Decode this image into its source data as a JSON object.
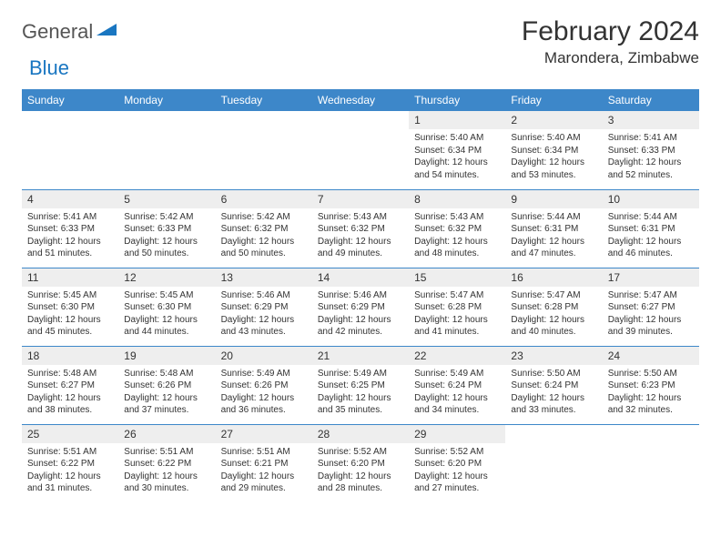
{
  "logo": {
    "text1": "General",
    "text2": "Blue",
    "shape_color": "#1976c1"
  },
  "title": {
    "month": "February 2024",
    "location": "Marondera, Zimbabwe"
  },
  "colors": {
    "header_bg": "#3d87c9",
    "header_fg": "#ffffff",
    "daynum_bg": "#eeeeee",
    "rule": "#3d87c9",
    "text": "#333333"
  },
  "weekdays": [
    "Sunday",
    "Monday",
    "Tuesday",
    "Wednesday",
    "Thursday",
    "Friday",
    "Saturday"
  ],
  "weeks": [
    [
      null,
      null,
      null,
      null,
      {
        "n": "1",
        "sunrise": "5:40 AM",
        "sunset": "6:34 PM",
        "daylight": "12 hours and 54 minutes."
      },
      {
        "n": "2",
        "sunrise": "5:40 AM",
        "sunset": "6:34 PM",
        "daylight": "12 hours and 53 minutes."
      },
      {
        "n": "3",
        "sunrise": "5:41 AM",
        "sunset": "6:33 PM",
        "daylight": "12 hours and 52 minutes."
      }
    ],
    [
      {
        "n": "4",
        "sunrise": "5:41 AM",
        "sunset": "6:33 PM",
        "daylight": "12 hours and 51 minutes."
      },
      {
        "n": "5",
        "sunrise": "5:42 AM",
        "sunset": "6:33 PM",
        "daylight": "12 hours and 50 minutes."
      },
      {
        "n": "6",
        "sunrise": "5:42 AM",
        "sunset": "6:32 PM",
        "daylight": "12 hours and 50 minutes."
      },
      {
        "n": "7",
        "sunrise": "5:43 AM",
        "sunset": "6:32 PM",
        "daylight": "12 hours and 49 minutes."
      },
      {
        "n": "8",
        "sunrise": "5:43 AM",
        "sunset": "6:32 PM",
        "daylight": "12 hours and 48 minutes."
      },
      {
        "n": "9",
        "sunrise": "5:44 AM",
        "sunset": "6:31 PM",
        "daylight": "12 hours and 47 minutes."
      },
      {
        "n": "10",
        "sunrise": "5:44 AM",
        "sunset": "6:31 PM",
        "daylight": "12 hours and 46 minutes."
      }
    ],
    [
      {
        "n": "11",
        "sunrise": "5:45 AM",
        "sunset": "6:30 PM",
        "daylight": "12 hours and 45 minutes."
      },
      {
        "n": "12",
        "sunrise": "5:45 AM",
        "sunset": "6:30 PM",
        "daylight": "12 hours and 44 minutes."
      },
      {
        "n": "13",
        "sunrise": "5:46 AM",
        "sunset": "6:29 PM",
        "daylight": "12 hours and 43 minutes."
      },
      {
        "n": "14",
        "sunrise": "5:46 AM",
        "sunset": "6:29 PM",
        "daylight": "12 hours and 42 minutes."
      },
      {
        "n": "15",
        "sunrise": "5:47 AM",
        "sunset": "6:28 PM",
        "daylight": "12 hours and 41 minutes."
      },
      {
        "n": "16",
        "sunrise": "5:47 AM",
        "sunset": "6:28 PM",
        "daylight": "12 hours and 40 minutes."
      },
      {
        "n": "17",
        "sunrise": "5:47 AM",
        "sunset": "6:27 PM",
        "daylight": "12 hours and 39 minutes."
      }
    ],
    [
      {
        "n": "18",
        "sunrise": "5:48 AM",
        "sunset": "6:27 PM",
        "daylight": "12 hours and 38 minutes."
      },
      {
        "n": "19",
        "sunrise": "5:48 AM",
        "sunset": "6:26 PM",
        "daylight": "12 hours and 37 minutes."
      },
      {
        "n": "20",
        "sunrise": "5:49 AM",
        "sunset": "6:26 PM",
        "daylight": "12 hours and 36 minutes."
      },
      {
        "n": "21",
        "sunrise": "5:49 AM",
        "sunset": "6:25 PM",
        "daylight": "12 hours and 35 minutes."
      },
      {
        "n": "22",
        "sunrise": "5:49 AM",
        "sunset": "6:24 PM",
        "daylight": "12 hours and 34 minutes."
      },
      {
        "n": "23",
        "sunrise": "5:50 AM",
        "sunset": "6:24 PM",
        "daylight": "12 hours and 33 minutes."
      },
      {
        "n": "24",
        "sunrise": "5:50 AM",
        "sunset": "6:23 PM",
        "daylight": "12 hours and 32 minutes."
      }
    ],
    [
      {
        "n": "25",
        "sunrise": "5:51 AM",
        "sunset": "6:22 PM",
        "daylight": "12 hours and 31 minutes."
      },
      {
        "n": "26",
        "sunrise": "5:51 AM",
        "sunset": "6:22 PM",
        "daylight": "12 hours and 30 minutes."
      },
      {
        "n": "27",
        "sunrise": "5:51 AM",
        "sunset": "6:21 PM",
        "daylight": "12 hours and 29 minutes."
      },
      {
        "n": "28",
        "sunrise": "5:52 AM",
        "sunset": "6:20 PM",
        "daylight": "12 hours and 28 minutes."
      },
      {
        "n": "29",
        "sunrise": "5:52 AM",
        "sunset": "6:20 PM",
        "daylight": "12 hours and 27 minutes."
      },
      null,
      null
    ]
  ],
  "labels": {
    "sunrise": "Sunrise:",
    "sunset": "Sunset:",
    "daylight": "Daylight:"
  }
}
